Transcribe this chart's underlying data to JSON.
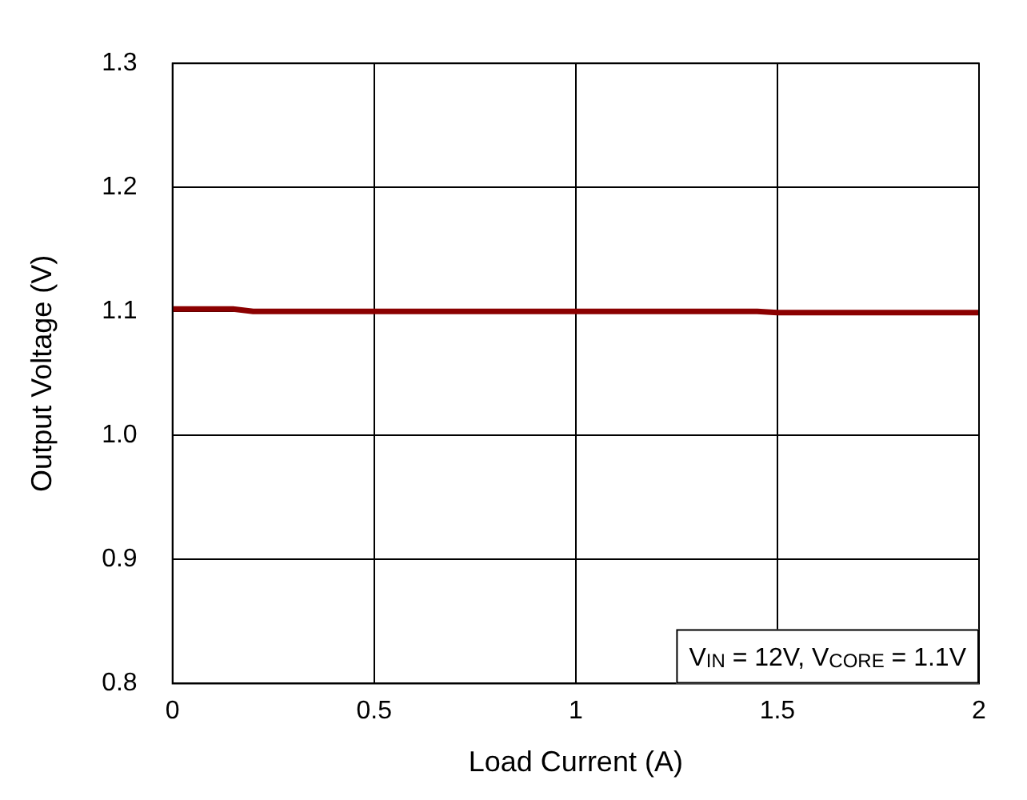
{
  "chart_data": {
    "type": "line",
    "xlabel": "Load Current (A)",
    "ylabel": "Output Voltage (V)",
    "x": [
      0,
      0.15,
      0.2,
      1.45,
      1.5,
      2
    ],
    "series": [
      {
        "color": "#8b0000",
        "values": [
          1.102,
          1.102,
          1.1,
          1.1,
          1.099,
          1.099
        ]
      }
    ],
    "xlim": [
      0,
      2
    ],
    "xticks": [
      0,
      0.5,
      1,
      1.5,
      2
    ],
    "ylim": [
      0.8,
      1.3
    ],
    "yticks": [
      0.8,
      0.9,
      {
        "value": 1,
        "label": "1.0"
      },
      1.1,
      1.2,
      1.3
    ],
    "grid": true,
    "legend": false,
    "marker": "none",
    "line_style": "solid",
    "annotations": [
      "V$_{IN}$ = 12V, V$_{CORE}$ = 1.1V"
    ]
  }
}
